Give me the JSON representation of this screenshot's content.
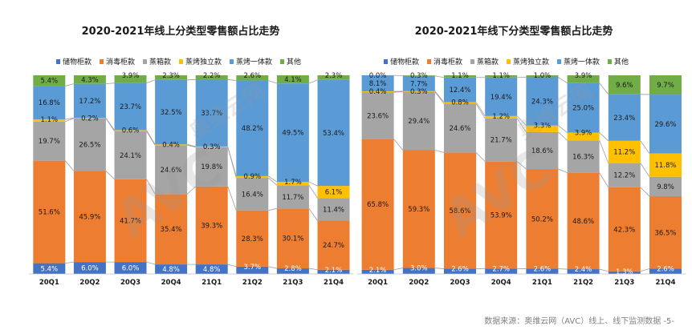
{
  "footnote": "数据来源：奥维云网（AVC）线上、线下监测数据  -5-",
  "colors": {
    "储物柜款": "#4472C4",
    "消毒柜款": "#ED7D31",
    "蒸箱款": "#A5A5A5",
    "蒸烤独立款": "#FFC000",
    "蒸烤一体款": "#5B9BD5",
    "其他": "#70AD47"
  },
  "chart_data": [
    {
      "type": "bar",
      "stacked": "percent",
      "title": "2020-2021年线上分类型零售额占比走势",
      "legend_position": "top",
      "categories": [
        "20Q1",
        "20Q2",
        "20Q3",
        "20Q4",
        "21Q1",
        "21Q2",
        "21Q3",
        "21Q4"
      ],
      "series": [
        {
          "name": "储物柜款",
          "values": [
            5.4,
            6.0,
            6.0,
            4.8,
            4.8,
            3.7,
            2.8,
            2.1
          ]
        },
        {
          "name": "消毒柜款",
          "values": [
            51.6,
            45.9,
            41.7,
            35.4,
            39.3,
            28.3,
            30.1,
            24.7
          ]
        },
        {
          "name": "蒸箱款",
          "values": [
            19.7,
            26.5,
            24.1,
            24.6,
            19.8,
            16.4,
            11.7,
            11.4
          ]
        },
        {
          "name": "蒸烤独立款",
          "values": [
            1.1,
            0.2,
            0.6,
            0.4,
            0.3,
            0.9,
            1.7,
            6.1
          ]
        },
        {
          "name": "蒸烤一体款",
          "values": [
            16.8,
            17.2,
            23.7,
            32.5,
            33.7,
            48.2,
            49.5,
            53.4
          ]
        },
        {
          "name": "其他",
          "values": [
            5.4,
            4.3,
            3.9,
            2.3,
            2.2,
            2.6,
            4.1,
            2.3
          ]
        }
      ]
    },
    {
      "type": "bar",
      "stacked": "percent",
      "title": "2020-2021年线下分类型零售额占比走势",
      "legend_position": "top",
      "categories": [
        "20Q1",
        "20Q2",
        "20Q3",
        "20Q4",
        "21Q1",
        "21Q2",
        "21Q3",
        "21Q4"
      ],
      "series": [
        {
          "name": "储物柜款",
          "values": [
            2.1,
            3.0,
            2.6,
            2.7,
            2.6,
            2.4,
            1.3,
            2.6
          ]
        },
        {
          "name": "消毒柜款",
          "values": [
            65.8,
            59.3,
            58.6,
            53.9,
            50.2,
            48.6,
            42.3,
            36.5
          ]
        },
        {
          "name": "蒸箱款",
          "values": [
            23.6,
            29.4,
            24.6,
            21.7,
            18.6,
            16.3,
            12.2,
            9.8
          ]
        },
        {
          "name": "蒸烤独立款",
          "values": [
            0.4,
            0.3,
            0.8,
            1.2,
            3.3,
            3.9,
            11.2,
            11.8
          ]
        },
        {
          "name": "蒸烤一体款",
          "values": [
            8.1,
            7.7,
            12.4,
            19.4,
            24.3,
            25.0,
            23.4,
            29.6
          ]
        },
        {
          "name": "其他",
          "values": [
            0.0,
            0.3,
            1.1,
            1.1,
            1.0,
            3.9,
            9.6,
            9.7
          ]
        }
      ]
    }
  ]
}
